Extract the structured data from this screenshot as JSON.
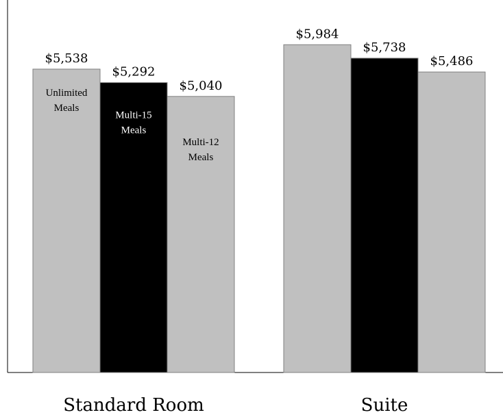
{
  "chart_data": {
    "type": "bar",
    "title": "",
    "xlabel": "",
    "ylabel": "",
    "categories": [
      "Standard Room",
      "Suite"
    ],
    "series": [
      {
        "name": "Unlimited Meals",
        "color": "#c0c0c0",
        "values": [
          5538,
          5984
        ],
        "labels": [
          "$5,538",
          "$5,984"
        ]
      },
      {
        "name": "Multi-15 Meals",
        "color": "#000000",
        "values": [
          5292,
          5738
        ],
        "labels": [
          "$5,292",
          "$5,738"
        ]
      },
      {
        "name": "Multi-12 Meals",
        "color": "#c0c0c0",
        "values": [
          5040,
          5486
        ],
        "labels": [
          "$5,040",
          "$5,486"
        ]
      }
    ],
    "series_label_lines": [
      [
        "Unlimited",
        "Meals"
      ],
      [
        "Multi-15",
        "Meals"
      ],
      [
        "Multi-12",
        "Meals"
      ]
    ],
    "ylim": [
      0,
      6800
    ],
    "grid": false,
    "legend": "none"
  }
}
